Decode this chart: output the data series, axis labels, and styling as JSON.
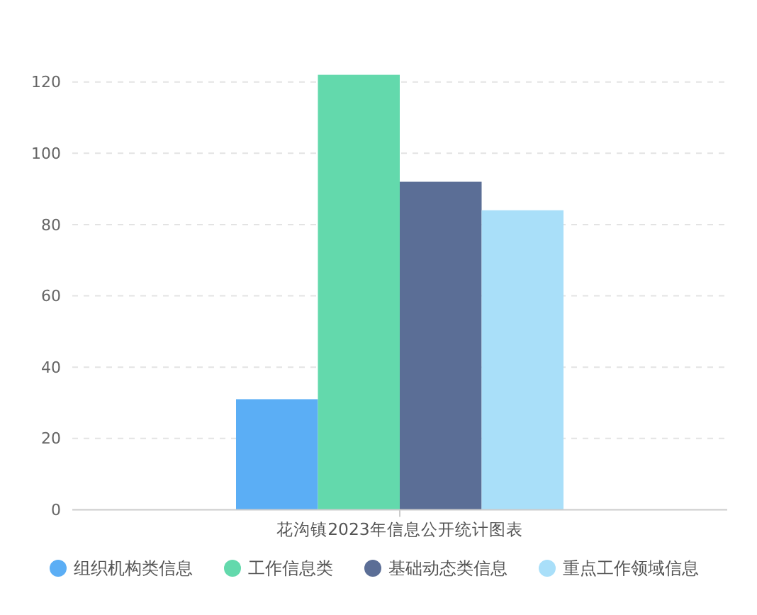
{
  "chart_data": {
    "type": "bar",
    "categories": [
      "花沟镇2023年信息公开统计图表"
    ],
    "series": [
      {
        "name": "组织机构类信息",
        "color": "#5baef5",
        "values": [
          31
        ]
      },
      {
        "name": "工作信息类",
        "color": "#63d9ac",
        "values": [
          122
        ]
      },
      {
        "name": "基础动态类信息",
        "color": "#5b6e96",
        "values": [
          92
        ]
      },
      {
        "name": "重点工作领域信息",
        "color": "#a9dff9",
        "values": [
          84
        ]
      }
    ],
    "ylim": [
      0,
      122
    ],
    "yticks": [
      0,
      20,
      40,
      60,
      80,
      100,
      120
    ],
    "grid": "y",
    "legend": "bottom"
  }
}
